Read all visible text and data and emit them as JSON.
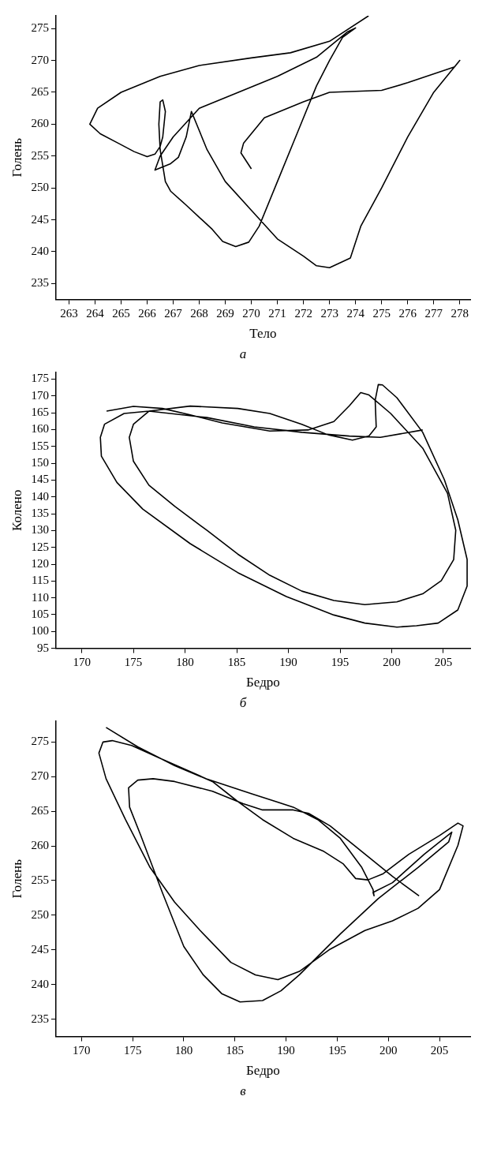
{
  "chart_data": [
    {
      "type": "line",
      "xlabel": "Тело",
      "ylabel": "Голень",
      "annotations": [
        "а"
      ],
      "xlim": [
        262.5,
        278.4
      ],
      "ylim": [
        232.5,
        277
      ],
      "xticks": [
        263,
        264,
        265,
        266,
        267,
        268,
        269,
        270,
        271,
        272,
        273,
        274,
        275,
        276,
        277,
        278
      ],
      "yticks": [
        235,
        240,
        245,
        250,
        255,
        260,
        265,
        270,
        275
      ],
      "grid": false,
      "legend": false,
      "marker": "none",
      "series": [
        {
          "color": "#000000",
          "x": [
            270,
            269.6,
            269.7,
            270.5,
            272,
            273,
            275,
            276,
            277.8,
            278,
            277,
            276,
            275,
            274.2,
            273.8,
            273,
            272.5,
            272,
            271,
            270,
            269,
            268.3,
            267.7,
            267.5,
            267.2,
            266.9,
            266.3,
            266.5,
            267,
            268,
            269.5,
            271,
            272.5,
            273.7,
            274,
            273.5,
            273,
            272.5,
            271.8,
            271,
            270.3,
            269.9,
            269.4,
            268.9,
            268.5,
            267.5,
            266.9,
            266.7,
            266.5,
            266.45,
            266.5,
            266.6,
            266.7,
            266.6,
            266.5,
            266.3,
            266,
            265.5,
            264.9,
            264.2,
            263.8,
            264.1,
            265,
            266.5,
            268,
            270,
            271.5,
            273,
            274.5
          ],
          "values": [
            253,
            255.5,
            257,
            261,
            263.5,
            265,
            265.3,
            266.5,
            269,
            270,
            265,
            258,
            250,
            244,
            239,
            237.5,
            237.8,
            239.3,
            242,
            246.5,
            251,
            256,
            262,
            258,
            254.8,
            253.8,
            252.8,
            255,
            258,
            262.5,
            265,
            267.5,
            270.5,
            274.5,
            275.1,
            273.6,
            270,
            266,
            259,
            251,
            244,
            241.5,
            240.8,
            241.6,
            243.5,
            247.3,
            249.5,
            251,
            256,
            260,
            263.5,
            263.8,
            262,
            258,
            256.5,
            255.3,
            254.9,
            255.7,
            257,
            258.5,
            260,
            262.5,
            265,
            267.5,
            269.2,
            270.4,
            271.2,
            273,
            277
          ]
        }
      ]
    },
    {
      "type": "line",
      "xlabel": "Бедро",
      "ylabel": "Колено",
      "annotations": [
        "б"
      ],
      "xlim": [
        167.5,
        207.6
      ],
      "ylim": [
        95,
        177
      ],
      "xticks": [
        170,
        175,
        180,
        185,
        190,
        195,
        200,
        205
      ],
      "yticks": [
        95,
        100,
        105,
        110,
        115,
        120,
        125,
        130,
        135,
        140,
        145,
        150,
        155,
        160,
        165,
        170,
        175
      ],
      "grid": false,
      "legend": false,
      "marker": "none",
      "series": [
        {
          "color": "#000000",
          "x": [
            172.4,
            175,
            177.8,
            180.5,
            183.6,
            188.2,
            191.9,
            194.4,
            195.9,
            197,
            197.8,
            199.9,
            203,
            205.4,
            206.2,
            206,
            204.8,
            203,
            200.5,
            197.4,
            194.4,
            191.3,
            188.2,
            185.1,
            182.1,
            179,
            176.5,
            175,
            174.6,
            175,
            176.5,
            180.5,
            185.1,
            188.2,
            191.3,
            193.8,
            196.2,
            197.8,
            198.5,
            198.4,
            198.7,
            199.1,
            200.5,
            203,
            205.1,
            206.4,
            207.3,
            207.3,
            206.4,
            204.5,
            202.4,
            200.5,
            197.4,
            194.4,
            189.8,
            185.1,
            180.5,
            175.9,
            173.4,
            171.9,
            171.8,
            172.2,
            174.1,
            176.5,
            182.1,
            186.7,
            191.3,
            195.9,
            198.9,
            203
          ],
          "values": [
            165.5,
            166.9,
            166.3,
            164.4,
            162,
            159.6,
            159.9,
            162.4,
            167.1,
            171,
            170.3,
            164.8,
            154.5,
            141.1,
            130.1,
            121.4,
            115.1,
            111.2,
            108.8,
            108,
            109.2,
            112,
            116.7,
            123,
            130.1,
            137.2,
            143.5,
            150.6,
            157.7,
            161.6,
            165.5,
            167,
            166.3,
            164.8,
            161.6,
            158.5,
            156.9,
            158.1,
            160.8,
            168.7,
            173.4,
            173.3,
            169.5,
            159.2,
            145.1,
            133.2,
            121.4,
            113.5,
            106.4,
            102.5,
            101.7,
            101.3,
            102.5,
            104.9,
            110.4,
            117.5,
            126.1,
            136.4,
            144.3,
            152.1,
            157.7,
            161.6,
            164.8,
            165.5,
            163.6,
            160.8,
            159.2,
            158.1,
            157.7,
            159.9
          ]
        }
      ]
    },
    {
      "type": "line",
      "xlabel": "Бедро",
      "ylabel": "Голень",
      "annotations": [
        "в"
      ],
      "xlim": [
        167.5,
        208
      ],
      "ylim": [
        232.5,
        278
      ],
      "xticks": [
        170,
        175,
        180,
        185,
        190,
        195,
        200,
        205
      ],
      "yticks": [
        235,
        240,
        245,
        250,
        255,
        260,
        265,
        270,
        275
      ],
      "grid": false,
      "legend": false,
      "marker": "none",
      "series": [
        {
          "color": "#000000",
          "x": [
            172.4,
            175.5,
            179.1,
            182.8,
            185.2,
            187.7,
            190.7,
            193.7,
            195.6,
            196.8,
            198,
            199.5,
            202,
            205,
            206.8,
            207.3,
            206.8,
            205,
            202.9,
            200.4,
            197.7,
            194.3,
            191.3,
            189.2,
            187,
            184.6,
            181.6,
            179.1,
            176.7,
            174.3,
            172.4,
            171.7,
            172.1,
            173,
            174.9,
            177.9,
            182.2,
            186.7,
            190.7,
            193.1,
            195.3,
            197.4,
            198.5,
            198.6,
            198.5,
            200.4,
            203.5,
            206.2,
            205.9,
            202.9,
            199,
            195.3,
            191.3,
            189.5,
            187.7,
            185.5,
            183.7,
            181.9,
            180,
            177.9,
            175.8,
            174.7,
            174.6,
            175.5,
            177,
            179.1,
            182.8,
            185.8,
            187.7,
            190.7,
            192.2,
            194.3,
            197.4,
            200.4,
            203
          ],
          "values": [
            277.1,
            274.3,
            271.6,
            269.3,
            266.5,
            263.8,
            261.1,
            259.2,
            257.4,
            255.3,
            255.1,
            256,
            258.8,
            261.5,
            263.3,
            262.9,
            260.1,
            253.7,
            251,
            249.2,
            247.8,
            245.1,
            241.9,
            240.7,
            241.4,
            243.2,
            247.8,
            251.9,
            256.9,
            263.8,
            269.7,
            273.4,
            275,
            275.2,
            274.5,
            272.5,
            269.7,
            267.5,
            265.6,
            263.8,
            261.1,
            256.9,
            253.7,
            252.8,
            253.3,
            254.7,
            258.8,
            262,
            260.6,
            256.9,
            252.4,
            247.3,
            241.4,
            239.1,
            237.7,
            237.5,
            238.7,
            241.4,
            245.5,
            253.3,
            261.5,
            265.6,
            268.4,
            269.5,
            269.7,
            269.3,
            267.9,
            266.1,
            265.2,
            265.2,
            264.7,
            262.9,
            259.2,
            255.6,
            252.8
          ]
        }
      ]
    }
  ]
}
